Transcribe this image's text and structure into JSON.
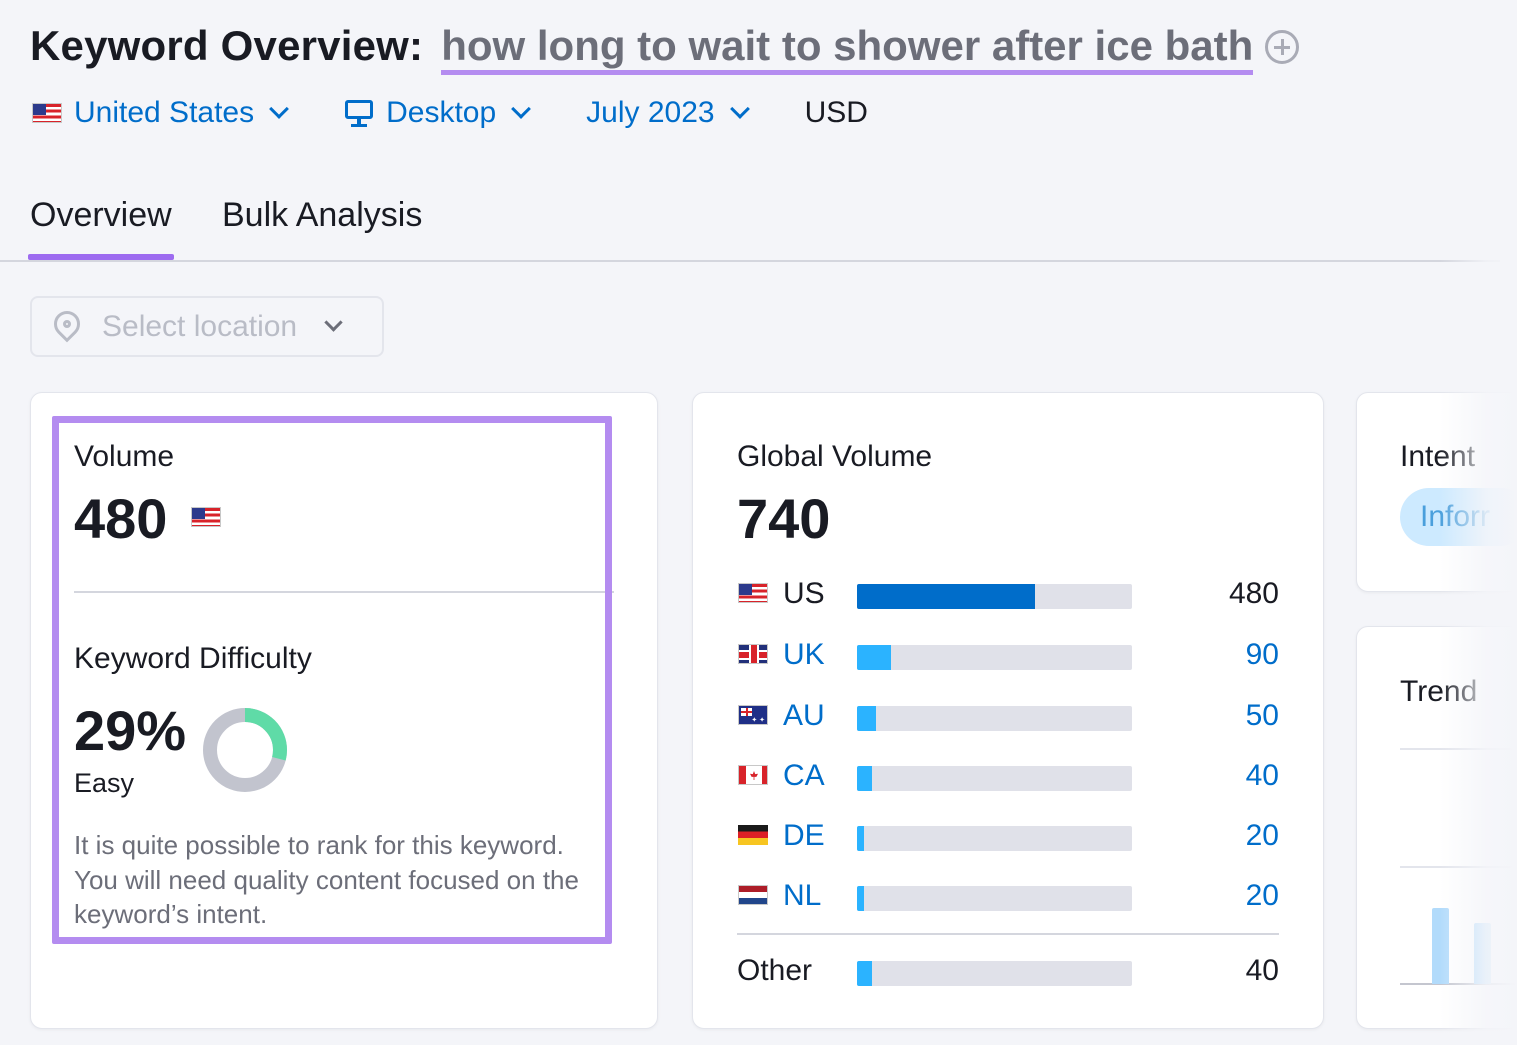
{
  "header": {
    "title_label": "Keyword Overview:",
    "keyword": "how long to wait to shower after ice bath",
    "add_icon": "plus-circle-icon"
  },
  "filters": {
    "country": "United States",
    "device": "Desktop",
    "date": "July 2023",
    "currency": "USD"
  },
  "tabs": [
    {
      "label": "Overview",
      "active": true
    },
    {
      "label": "Bulk Analysis",
      "active": false
    }
  ],
  "location_select": {
    "placeholder": "Select location"
  },
  "volume_card": {
    "volume_label": "Volume",
    "volume_value": "480",
    "kd_label": "Keyword Difficulty",
    "kd_value": "29%",
    "kd_percent": 29,
    "kd_level": "Easy",
    "kd_description": "It is quite possible to rank for this keyword. You will need quality content focused on the keyword’s intent."
  },
  "global_card": {
    "label": "Global Volume",
    "value": "740",
    "countries": [
      {
        "code": "US",
        "value": "480",
        "share": 0.648,
        "flag": "us",
        "fill": "#006dca",
        "link": false
      },
      {
        "code": "UK",
        "value": "90",
        "share": 0.122,
        "flag": "uk",
        "fill": "#2bb3ff",
        "link": true
      },
      {
        "code": "AU",
        "value": "50",
        "share": 0.068,
        "flag": "au",
        "fill": "#2bb3ff",
        "link": true
      },
      {
        "code": "CA",
        "value": "40",
        "share": 0.054,
        "flag": "ca",
        "fill": "#2bb3ff",
        "link": true
      },
      {
        "code": "DE",
        "value": "20",
        "share": 0.027,
        "flag": "de",
        "fill": "#2bb3ff",
        "link": true
      },
      {
        "code": "NL",
        "value": "20",
        "share": 0.027,
        "flag": "nl",
        "fill": "#2bb3ff",
        "link": true
      }
    ],
    "other": {
      "code": "Other",
      "value": "40",
      "share": 0.054,
      "fill": "#2bb3ff"
    }
  },
  "intent_card": {
    "label": "Intent",
    "badge": "Inforr"
  },
  "trend_card": {
    "label": "Trend"
  },
  "colors": {
    "accent_purple": "#b48cf0",
    "link_blue": "#006dca",
    "kd_green": "#5fdba7",
    "kd_gray": "#c2c4ce"
  }
}
